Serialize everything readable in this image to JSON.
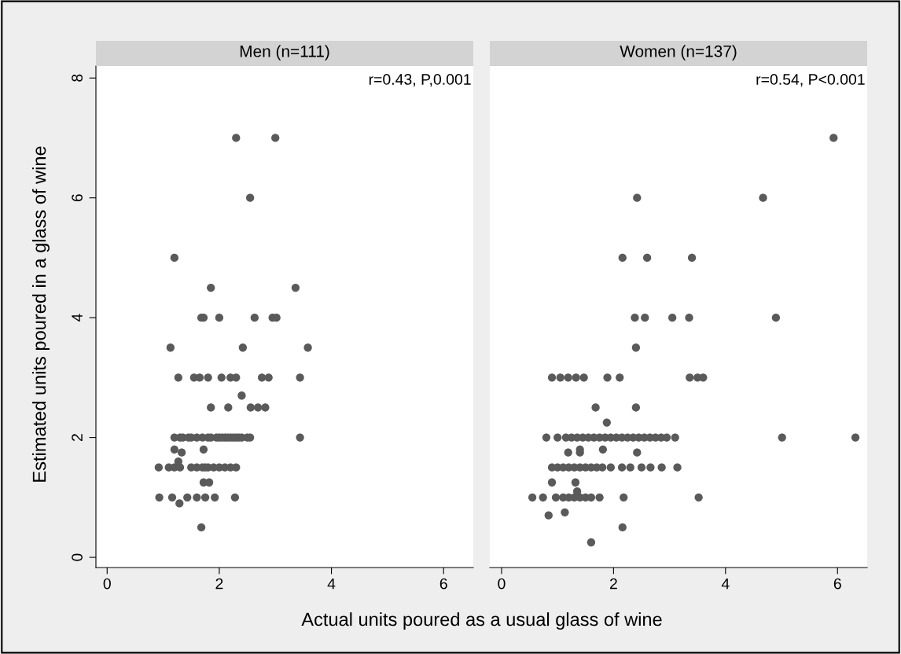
{
  "chart_data": [
    {
      "type": "scatter",
      "title": "Men (n=111)",
      "xlabel": "Actual units poured as a usual glass of wine",
      "ylabel": "Estimated units poured in a glass of wine",
      "annotations": [
        "r=0.43, P,0.001"
      ],
      "xlim": [
        -0.2,
        6.53
      ],
      "ylim": [
        -0.17,
        8.2
      ],
      "xticks": [
        0,
        2,
        4,
        6
      ],
      "yticks": [
        0,
        2,
        4,
        6,
        8
      ],
      "grid": false,
      "marker": "circle",
      "tick_labels": "xy",
      "series": [
        {
          "color": "#5a5a5a",
          "x": [
            2.3,
            3.0,
            2.55,
            1.2,
            3.36,
            1.85,
            1.68,
            1.72,
            2.0,
            2.63,
            2.95,
            3.02,
            1.13,
            2.42,
            3.58,
            2.4,
            1.27,
            1.55,
            1.65,
            1.8,
            2.04,
            2.2,
            2.3,
            2.76,
            2.88,
            3.44,
            1.85,
            2.16,
            2.56,
            2.69,
            2.82,
            1.2,
            1.3,
            1.35,
            1.45,
            1.5,
            1.6,
            1.7,
            1.8,
            1.85,
            1.95,
            2.0,
            2.05,
            2.1,
            2.15,
            2.2,
            2.25,
            2.3,
            2.35,
            2.4,
            2.5,
            2.55,
            3.44,
            1.2,
            1.72,
            1.33,
            1.27,
            0.92,
            1.1,
            1.2,
            1.3,
            1.5,
            1.6,
            1.7,
            1.75,
            1.8,
            1.9,
            2.0,
            2.1,
            2.2,
            2.3,
            1.72,
            1.82,
            0.93,
            1.16,
            1.43,
            1.6,
            1.75,
            1.92,
            2.28,
            1.29,
            1.68
          ],
          "values": [
            7,
            7,
            6,
            5,
            4.5,
            4.5,
            4,
            4,
            4,
            4,
            4,
            4,
            3.5,
            3.5,
            3.5,
            2.7,
            3,
            3,
            3,
            3,
            3,
            3,
            3,
            3,
            3,
            3,
            2.5,
            2.5,
            2.5,
            2.5,
            2.5,
            2,
            2,
            2,
            2,
            2,
            2,
            2,
            2,
            2,
            2,
            2,
            2,
            2,
            2,
            2,
            2,
            2,
            2,
            2,
            2,
            2,
            2,
            1.8,
            1.8,
            1.75,
            1.6,
            1.5,
            1.5,
            1.5,
            1.5,
            1.5,
            1.5,
            1.5,
            1.5,
            1.5,
            1.5,
            1.5,
            1.5,
            1.5,
            1.5,
            1.25,
            1.25,
            1,
            1,
            1,
            1,
            1,
            1,
            1,
            0.9,
            0.5
          ]
        }
      ]
    },
    {
      "type": "scatter",
      "title": "Women (n=137)",
      "annotations": [
        "r=0.54, P<0.001"
      ],
      "xlim": [
        -0.21,
        6.53
      ],
      "ylim": [
        -0.17,
        8.2
      ],
      "xticks": [
        0,
        2,
        4,
        6
      ],
      "yticks": [
        0,
        2,
        4,
        6,
        8
      ],
      "grid": false,
      "marker": "circle",
      "tick_labels": "x",
      "series": [
        {
          "color": "#5a5a5a",
          "x": [
            5.93,
            2.42,
            4.67,
            2.16,
            2.6,
            3.4,
            2.38,
            2.56,
            3.05,
            3.35,
            4.9,
            2.4,
            0.9,
            1.05,
            1.19,
            1.33,
            1.47,
            1.89,
            2.11,
            3.36,
            3.5,
            3.6,
            1.68,
            2.4,
            1.88,
            0.8,
            1.0,
            1.15,
            1.25,
            1.35,
            1.45,
            1.55,
            1.65,
            1.75,
            1.85,
            1.95,
            2.05,
            2.15,
            2.25,
            2.35,
            2.45,
            2.55,
            2.65,
            2.75,
            2.85,
            2.95,
            3.1,
            5.01,
            6.32,
            1.19,
            1.4,
            1.4,
            1.81,
            2.42,
            0.9,
            1.0,
            1.1,
            1.2,
            1.3,
            1.4,
            1.5,
            1.6,
            1.7,
            1.8,
            1.95,
            2.15,
            2.3,
            2.5,
            2.66,
            2.86,
            3.14,
            0.9,
            1.32,
            1.35,
            0.55,
            0.74,
            0.97,
            1.1,
            1.2,
            1.3,
            1.4,
            1.5,
            1.6,
            1.75,
            2.18,
            3.52,
            0.84,
            1.13,
            2.16,
            1.6
          ],
          "values": [
            7,
            6,
            6,
            5,
            5,
            5,
            4,
            4,
            4,
            4,
            4,
            3.5,
            3,
            3,
            3,
            3,
            3,
            3,
            3,
            3,
            3,
            3,
            2.5,
            2.5,
            2.25,
            2,
            2,
            2,
            2,
            2,
            2,
            2,
            2,
            2,
            2,
            2,
            2,
            2,
            2,
            2,
            2,
            2,
            2,
            2,
            2,
            2,
            2,
            2,
            2,
            1.75,
            1.75,
            1.8,
            1.8,
            1.75,
            1.5,
            1.5,
            1.5,
            1.5,
            1.5,
            1.5,
            1.5,
            1.5,
            1.5,
            1.5,
            1.5,
            1.5,
            1.5,
            1.5,
            1.5,
            1.5,
            1.5,
            1.25,
            1.25,
            1.1,
            1,
            1,
            1,
            1,
            1,
            1,
            1,
            1,
            1,
            1,
            1,
            1,
            0.7,
            0.75,
            0.5,
            0.25
          ]
        }
      ]
    }
  ]
}
